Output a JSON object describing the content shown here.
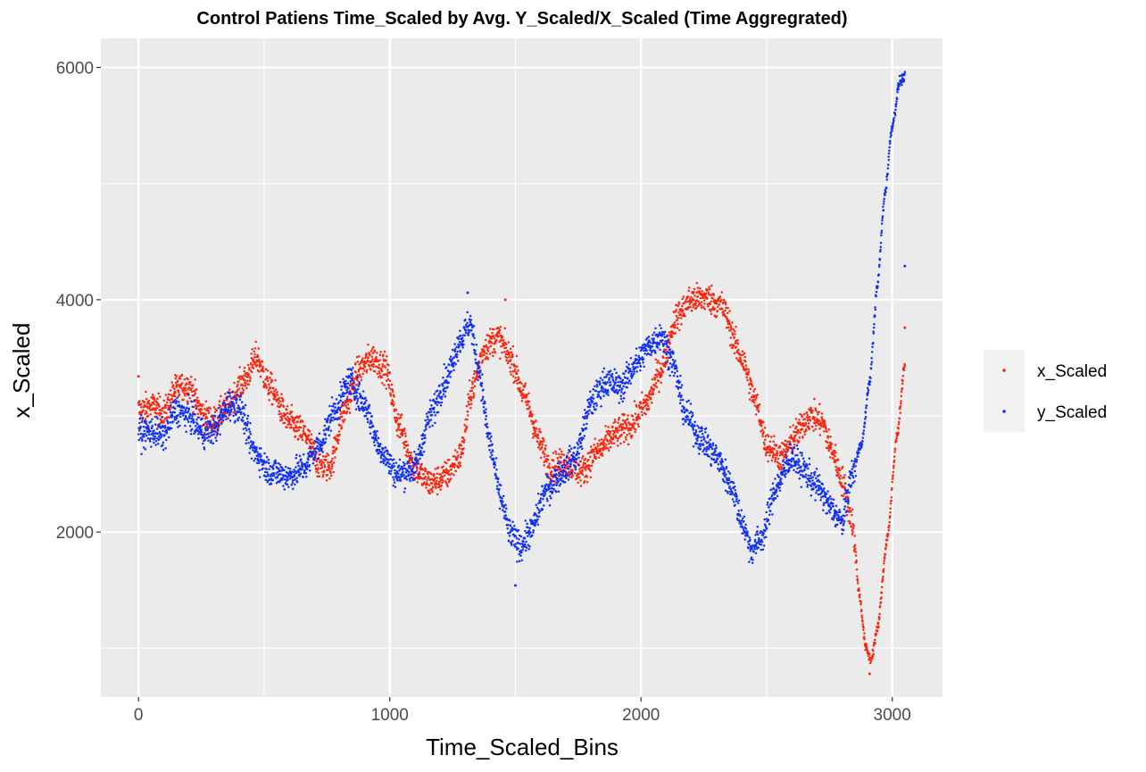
{
  "chart_data": {
    "type": "scatter",
    "title": "Control Patiens Time_Scaled by Avg. Y_Scaled/X_Scaled (Time Aggregrated)",
    "xlabel": "Time_Scaled_Bins",
    "ylabel": "x_Scaled",
    "xlim": [
      -150,
      3200
    ],
    "ylim": [
      580,
      6250
    ],
    "x_ticks": [
      0,
      1000,
      2000,
      3000
    ],
    "x_tick_labels": [
      "0",
      "1000",
      "2000",
      "3000"
    ],
    "y_ticks": [
      2000,
      4000,
      6000
    ],
    "y_tick_labels": [
      "2000",
      "4000",
      "6000"
    ],
    "grid": true,
    "legend_position": "right",
    "x_range": [
      0,
      3050
    ],
    "x_step": 1,
    "series": [
      {
        "name": "x_Scaled",
        "color": "#f8260f",
        "noise": 90,
        "keypoints": [
          [
            0,
            3050
          ],
          [
            60,
            3080
          ],
          [
            100,
            3020
          ],
          [
            150,
            3230
          ],
          [
            200,
            3260
          ],
          [
            260,
            3000
          ],
          [
            300,
            2950
          ],
          [
            350,
            3070
          ],
          [
            420,
            3300
          ],
          [
            470,
            3500
          ],
          [
            520,
            3250
          ],
          [
            600,
            2950
          ],
          [
            660,
            2850
          ],
          [
            720,
            2580
          ],
          [
            760,
            2560
          ],
          [
            820,
            3050
          ],
          [
            880,
            3400
          ],
          [
            930,
            3500
          ],
          [
            980,
            3420
          ],
          [
            1040,
            2900
          ],
          [
            1100,
            2550
          ],
          [
            1160,
            2420
          ],
          [
            1220,
            2480
          ],
          [
            1280,
            2650
          ],
          [
            1330,
            3250
          ],
          [
            1380,
            3600
          ],
          [
            1430,
            3680
          ],
          [
            1480,
            3500
          ],
          [
            1540,
            3150
          ],
          [
            1600,
            2750
          ],
          [
            1640,
            2550
          ],
          [
            1700,
            2600
          ],
          [
            1760,
            2520
          ],
          [
            1830,
            2700
          ],
          [
            1900,
            2850
          ],
          [
            1960,
            2920
          ],
          [
            2020,
            3100
          ],
          [
            2080,
            3400
          ],
          [
            2140,
            3850
          ],
          [
            2200,
            4000
          ],
          [
            2260,
            4020
          ],
          [
            2320,
            3950
          ],
          [
            2400,
            3500
          ],
          [
            2460,
            3100
          ],
          [
            2500,
            2750
          ],
          [
            2560,
            2650
          ],
          [
            2620,
            2850
          ],
          [
            2670,
            3000
          ],
          [
            2720,
            2950
          ],
          [
            2760,
            2700
          ],
          [
            2800,
            2450
          ],
          [
            2840,
            2100
          ],
          [
            2870,
            1450
          ],
          [
            2895,
            1000
          ],
          [
            2915,
            900
          ],
          [
            2940,
            1150
          ],
          [
            2980,
            1950
          ],
          [
            3020,
            2850
          ],
          [
            3050,
            3450
          ]
        ]
      },
      {
        "name": "y_Scaled",
        "color": "#1130f2",
        "noise": 90,
        "keypoints": [
          [
            0,
            2860
          ],
          [
            60,
            2860
          ],
          [
            100,
            2830
          ],
          [
            150,
            3050
          ],
          [
            200,
            3000
          ],
          [
            260,
            2850
          ],
          [
            300,
            2880
          ],
          [
            360,
            3100
          ],
          [
            400,
            3080
          ],
          [
            460,
            2700
          ],
          [
            520,
            2530
          ],
          [
            600,
            2480
          ],
          [
            660,
            2560
          ],
          [
            720,
            2750
          ],
          [
            780,
            3050
          ],
          [
            840,
            3300
          ],
          [
            900,
            3100
          ],
          [
            960,
            2720
          ],
          [
            1030,
            2500
          ],
          [
            1100,
            2550
          ],
          [
            1160,
            3000
          ],
          [
            1220,
            3300
          ],
          [
            1280,
            3650
          ],
          [
            1320,
            3800
          ],
          [
            1350,
            3450
          ],
          [
            1400,
            2750
          ],
          [
            1440,
            2300
          ],
          [
            1480,
            1980
          ],
          [
            1520,
            1880
          ],
          [
            1560,
            2000
          ],
          [
            1620,
            2350
          ],
          [
            1680,
            2500
          ],
          [
            1740,
            2650
          ],
          [
            1800,
            3100
          ],
          [
            1860,
            3300
          ],
          [
            1920,
            3250
          ],
          [
            1980,
            3450
          ],
          [
            2040,
            3620
          ],
          [
            2080,
            3700
          ],
          [
            2120,
            3500
          ],
          [
            2180,
            3000
          ],
          [
            2240,
            2800
          ],
          [
            2300,
            2650
          ],
          [
            2360,
            2400
          ],
          [
            2400,
            2100
          ],
          [
            2440,
            1850
          ],
          [
            2480,
            1950
          ],
          [
            2540,
            2400
          ],
          [
            2600,
            2650
          ],
          [
            2640,
            2550
          ],
          [
            2700,
            2400
          ],
          [
            2760,
            2200
          ],
          [
            2800,
            2080
          ],
          [
            2840,
            2500
          ],
          [
            2880,
            2780
          ],
          [
            2910,
            3300
          ],
          [
            2940,
            4100
          ],
          [
            2970,
            4900
          ],
          [
            3000,
            5500
          ],
          [
            3030,
            5880
          ],
          [
            3050,
            5920
          ]
        ]
      }
    ],
    "outliers": [
      {
        "series": "y_Scaled",
        "x": 3050,
        "y": 4290
      },
      {
        "series": "x_Scaled",
        "x": 3050,
        "y": 3760
      },
      {
        "series": "x_Scaled",
        "x": 0,
        "y": 3340
      },
      {
        "series": "y_Scaled",
        "x": 1310,
        "y": 4060
      },
      {
        "series": "x_Scaled",
        "x": 1460,
        "y": 4000
      },
      {
        "series": "y_Scaled",
        "x": 1500,
        "y": 1540
      },
      {
        "series": "x_Scaled",
        "x": 2910,
        "y": 780
      }
    ]
  }
}
